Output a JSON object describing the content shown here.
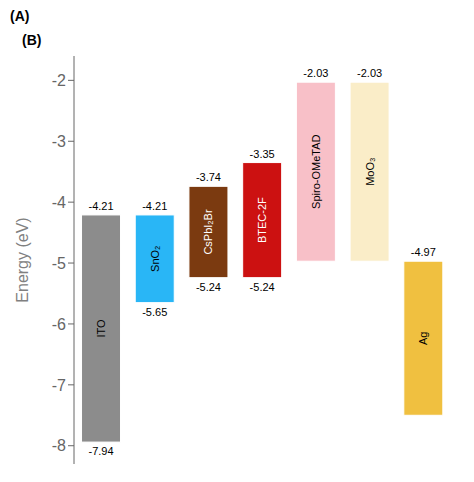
{
  "chart_data": {
    "type": "bar",
    "categories": [
      "ITO",
      "SnO₂",
      "CsPbI₂Br",
      "BTEC-2F",
      "Spiro-OMeTAD",
      "MoO₃",
      "Ag"
    ],
    "values": [
      -4.21,
      -4.21,
      -3.74,
      -3.35,
      -2.03,
      -2.03,
      -4.97
    ],
    "bottoms": [
      -7.94,
      -5.65,
      -5.24,
      -5.24,
      -4.97,
      -4.97,
      -7.5
    ],
    "bottom_labels": [
      -7.94,
      -5.65,
      -5.24,
      -5.24,
      null,
      null,
      null
    ],
    "colors": [
      "#8C8C8C",
      "#29B6F6",
      "#7B3A10",
      "#CC1111",
      "#F8C0C8",
      "#FAEDC8",
      "#F0C040"
    ],
    "ylabel": "Energy (eV)",
    "ylim": [
      -8.3,
      -1.6
    ],
    "yticks": [
      -2,
      -3,
      -4,
      -5,
      -6,
      -7,
      -8
    ],
    "data_labels": true,
    "tick_labels": "y",
    "grid": false,
    "annotations": [
      "(A)",
      "(B)"
    ]
  }
}
